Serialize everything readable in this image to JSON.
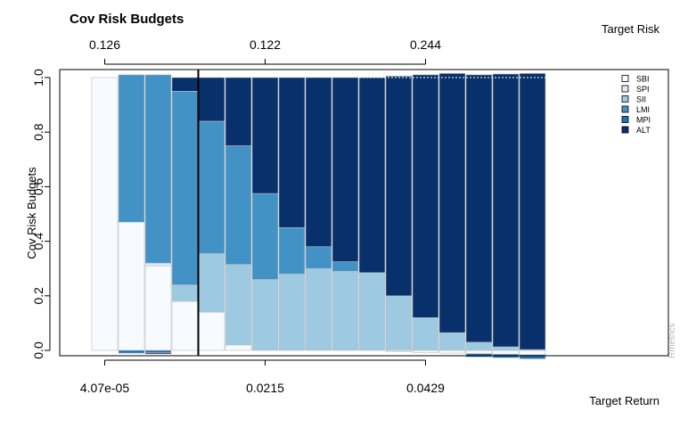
{
  "chart_data": {
    "type": "bar",
    "title": "Cov Risk Budgets",
    "xlabel": "Target Return",
    "ylabel": "Cov Risk Budgets",
    "top_axis_label": "Target Risk",
    "credit": "Rmetrics",
    "ylim": [
      0,
      1
    ],
    "yticks": [
      "0.0",
      "0.2",
      "0.4",
      "0.6",
      "0.8",
      "1.0"
    ],
    "bottom_ticks": [
      {
        "bar": 1,
        "label": "4.07e-05"
      },
      {
        "bar": 7,
        "label": "0.0215"
      },
      {
        "bar": 13,
        "label": "0.0429"
      }
    ],
    "top_ticks": [
      {
        "bar": 1,
        "label": "0.126"
      },
      {
        "bar": 7,
        "label": "0.122"
      },
      {
        "bar": 13,
        "label": "0.244"
      }
    ],
    "min_variance_line_after_bar": 4,
    "legend_position": "top-right",
    "series": [
      {
        "name": "SBI",
        "color": "#f7fbff",
        "values": [
          1.0,
          0.47,
          0.31,
          0.18,
          0.14,
          0.02,
          0.0,
          0.0,
          0.0,
          0.0,
          0.0,
          -0.005,
          -0.008,
          -0.01,
          -0.012,
          -0.014,
          -0.016
        ]
      },
      {
        "name": "SPI",
        "color": "#deebf7",
        "values": [
          0.0,
          0.0,
          0.01,
          0.0,
          0.0,
          0.0,
          0.0,
          0.0,
          0.0,
          0.0,
          0.0,
          0.0,
          0.0,
          0.0,
          0.0,
          0.0,
          0.0
        ]
      },
      {
        "name": "SII",
        "color": "#9ecae1",
        "values": [
          0.0,
          0.0,
          0.0,
          0.06,
          0.215,
          0.295,
          0.26,
          0.28,
          0.3,
          0.29,
          0.285,
          0.2,
          0.12,
          0.065,
          0.03,
          0.013,
          0.003
        ]
      },
      {
        "name": "LMI",
        "color": "#4292c6",
        "values": [
          0.0,
          0.54,
          0.69,
          0.71,
          0.485,
          0.435,
          0.315,
          0.17,
          0.08,
          0.035,
          0.0,
          0.0,
          0.0,
          0.0,
          0.0,
          0.0,
          0.0
        ]
      },
      {
        "name": "MPI",
        "color": "#2171b5",
        "values": [
          0.0,
          -0.01,
          -0.008,
          0.0,
          0.0,
          0.0,
          0.0,
          0.0,
          0.0,
          0.0,
          0.0,
          0.0,
          0.0,
          0.0,
          -0.012,
          -0.013,
          -0.015
        ]
      },
      {
        "name": "ALT",
        "color": "#08306b",
        "values": [
          0.0,
          0.0,
          -0.005,
          0.05,
          0.16,
          0.25,
          0.425,
          0.55,
          0.62,
          0.675,
          0.715,
          0.805,
          0.89,
          0.95,
          0.98,
          1.0,
          1.012
        ]
      }
    ]
  }
}
